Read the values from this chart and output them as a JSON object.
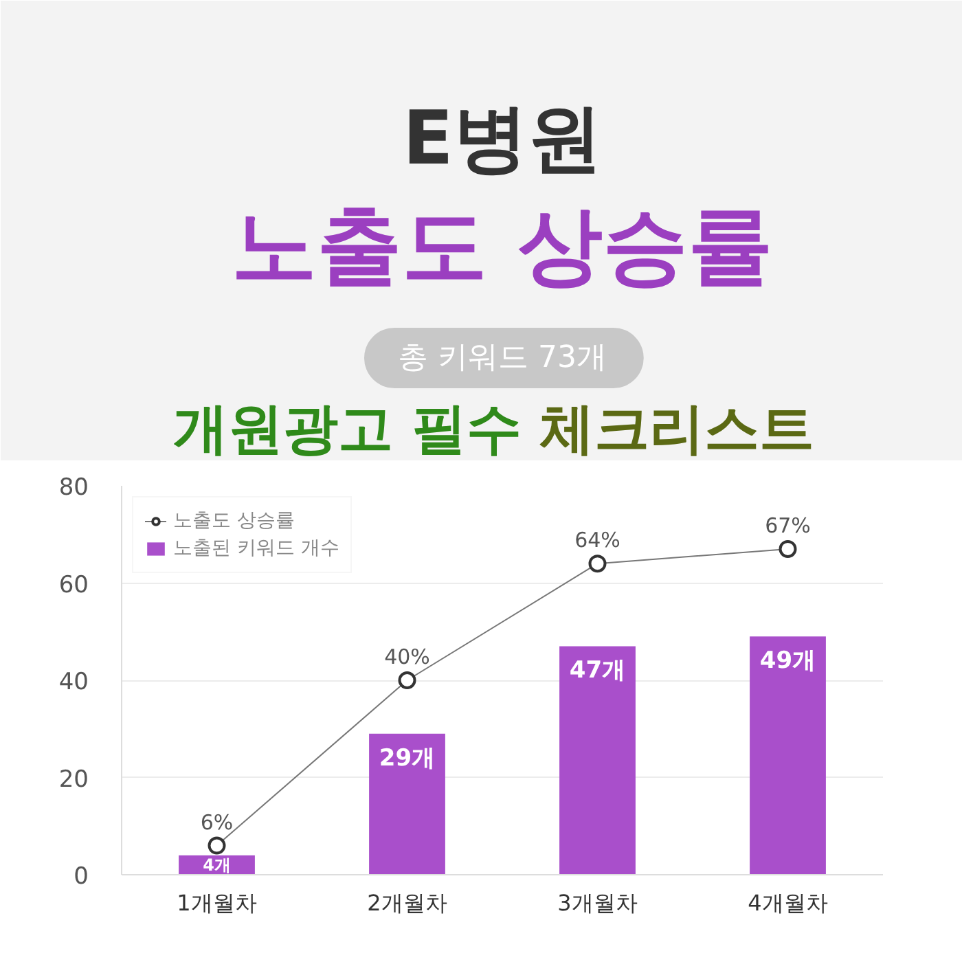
{
  "chart_data": {
    "type": "bar",
    "title": "E병원",
    "subtitle": "노출도 상승률",
    "annotations": [
      "총 키워드 73개",
      "개원광고 필수",
      "체크리스트"
    ],
    "categories": [
      "1개월차",
      "2개월차",
      "3개월차",
      "4개월차"
    ],
    "series": [
      {
        "name": "노출도 상승률",
        "type": "line",
        "color": "#555555",
        "values": [
          6,
          40,
          64,
          67
        ],
        "value_labels": [
          "6%",
          "40%",
          "64%",
          "67%"
        ]
      },
      {
        "name": "노출된 키워드 개수",
        "color": "#a94fcb",
        "values": [
          4,
          29,
          47,
          49
        ],
        "value_labels": [
          "4개",
          "29개",
          "47개",
          "49개"
        ]
      }
    ],
    "ylim": [
      0,
      80
    ],
    "yticks": [
      0,
      20,
      40,
      60,
      80
    ],
    "grid": "y",
    "legend": "top left",
    "marker": "circle"
  }
}
